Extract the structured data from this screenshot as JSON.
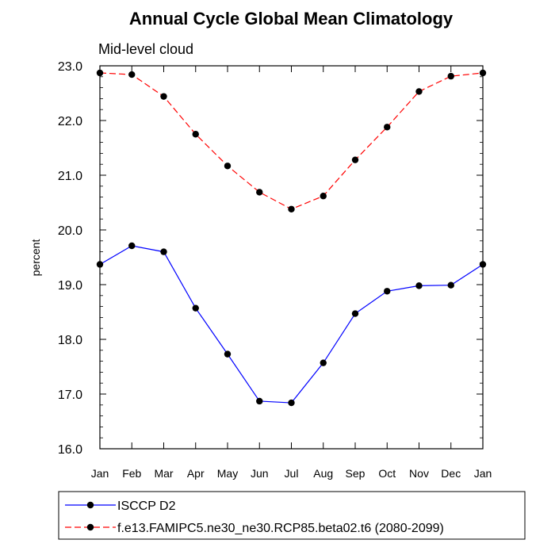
{
  "chart_data": {
    "type": "line",
    "title": "Annual Cycle Global Mean Climatology",
    "subtitle": "Mid-level cloud",
    "xlabel": "",
    "ylabel": "percent",
    "categories": [
      "Jan",
      "Feb",
      "Mar",
      "Apr",
      "May",
      "Jun",
      "Jul",
      "Aug",
      "Sep",
      "Oct",
      "Nov",
      "Dec",
      "Jan"
    ],
    "ylim": [
      16.0,
      23.0
    ],
    "yticks": [
      "16.0",
      "17.0",
      "18.0",
      "19.0",
      "20.0",
      "21.0",
      "22.0",
      "23.0"
    ],
    "grid": false,
    "legend_position": "bottom",
    "series": [
      {
        "name": "ISCCP D2",
        "color": "#0000ff",
        "style": "solid",
        "values": [
          19.37,
          19.71,
          19.6,
          18.57,
          17.73,
          16.87,
          16.84,
          17.57,
          18.47,
          18.88,
          18.98,
          18.99,
          19.37
        ]
      },
      {
        "name": "f.e13.FAMIPC5.ne30_ne30.RCP85.beta02.t6 (2080-2099)",
        "color": "#ff0000",
        "style": "dashed",
        "values": [
          22.87,
          22.84,
          22.44,
          21.75,
          21.17,
          20.69,
          20.38,
          20.62,
          21.28,
          21.88,
          22.53,
          22.81,
          22.87
        ]
      }
    ]
  }
}
